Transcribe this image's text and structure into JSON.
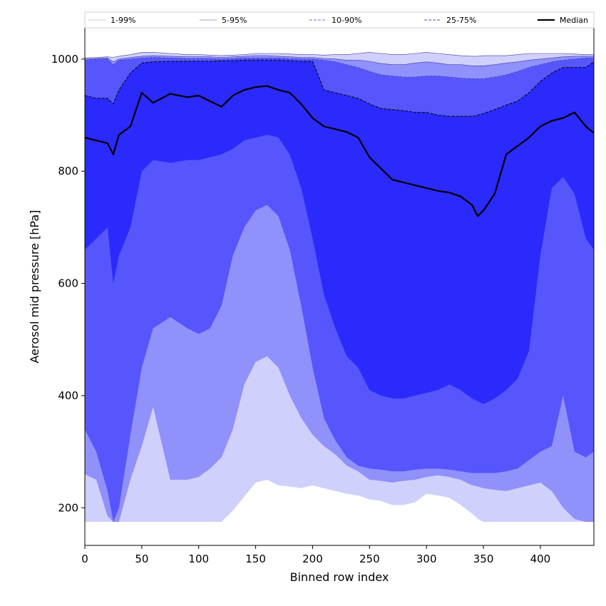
{
  "chart_data": {
    "type": "area",
    "xlabel": "Binned row index",
    "ylabel": "Aerosol mid pressure [hPa]",
    "xlim": [
      0,
      447
    ],
    "ylim": [
      133,
      1057
    ],
    "x_ticks": [
      "0",
      "50",
      "100",
      "150",
      "200",
      "250",
      "300",
      "350",
      "400"
    ],
    "y_ticks": [
      "200",
      "400",
      "600",
      "800",
      "1000"
    ],
    "grid": false,
    "legend_position": "top, spanning full width above plot",
    "x": [
      0,
      10,
      20,
      25,
      30,
      40,
      50,
      60,
      75,
      90,
      100,
      110,
      120,
      130,
      140,
      150,
      160,
      170,
      180,
      190,
      200,
      210,
      220,
      230,
      240,
      250,
      260,
      270,
      280,
      290,
      300,
      310,
      320,
      330,
      340,
      345,
      350,
      360,
      370,
      380,
      390,
      400,
      410,
      420,
      430,
      440,
      447
    ],
    "series": [
      {
        "name": "1-99%",
        "line_style": "solid",
        "lower": [
          175,
          175,
          175,
          175,
          175,
          175,
          175,
          175,
          175,
          175,
          175,
          175,
          175,
          195,
          220,
          245,
          250,
          240,
          238,
          235,
          240,
          235,
          230,
          225,
          222,
          215,
          212,
          205,
          205,
          210,
          225,
          222,
          218,
          205,
          190,
          180,
          175,
          175,
          175,
          175,
          175,
          175,
          175,
          175,
          175,
          175,
          175
        ],
        "upper": [
          1002,
          1003,
          1004,
          1003,
          1005,
          1008,
          1012,
          1012,
          1010,
          1008,
          1008,
          1007,
          1006,
          1007,
          1008,
          1010,
          1010,
          1010,
          1009,
          1008,
          1008,
          1007,
          1008,
          1008,
          1010,
          1012,
          1010,
          1008,
          1008,
          1010,
          1012,
          1010,
          1008,
          1006,
          1005,
          1005,
          1006,
          1006,
          1006,
          1008,
          1010,
          1010,
          1010,
          1010,
          1009,
          1008,
          1008
        ],
        "color": "#d0d0fc"
      },
      {
        "name": "5-95%",
        "line_style": "solid",
        "lower": [
          260,
          250,
          185,
          175,
          175,
          250,
          310,
          380,
          250,
          250,
          255,
          270,
          290,
          340,
          420,
          460,
          470,
          450,
          400,
          360,
          330,
          310,
          295,
          275,
          265,
          250,
          248,
          245,
          248,
          250,
          255,
          258,
          255,
          250,
          240,
          238,
          235,
          232,
          230,
          235,
          240,
          245,
          230,
          200,
          180,
          175,
          175
        ],
        "upper": [
          1000,
          1001,
          1002,
          995,
          1000,
          1003,
          1005,
          1006,
          1005,
          1004,
          1004,
          1004,
          1003,
          1004,
          1005,
          1006,
          1006,
          1005,
          1004,
          1003,
          1003,
          1001,
          1000,
          998,
          998,
          996,
          992,
          990,
          990,
          993,
          995,
          993,
          990,
          990,
          988,
          988,
          988,
          990,
          993,
          995,
          998,
          1000,
          1002,
          1004,
          1005,
          1005,
          1005
        ],
        "color": "#9191fc"
      },
      {
        "name": "10-90%",
        "line_style": "dashed",
        "lower": [
          340,
          300,
          230,
          175,
          200,
          330,
          450,
          520,
          540,
          520,
          510,
          520,
          560,
          650,
          700,
          730,
          740,
          720,
          660,
          560,
          450,
          360,
          320,
          290,
          275,
          270,
          268,
          265,
          265,
          268,
          270,
          270,
          268,
          265,
          262,
          262,
          262,
          262,
          265,
          270,
          285,
          300,
          310,
          400,
          300,
          290,
          300
        ],
        "upper": [
          998,
          1000,
          1000,
          990,
          998,
          1000,
          1002,
          1003,
          1002,
          1001,
          1001,
          1001,
          1000,
          1001,
          1002,
          1002,
          1002,
          1002,
          1001,
          1000,
          1000,
          998,
          995,
          990,
          985,
          978,
          972,
          970,
          968,
          968,
          970,
          970,
          968,
          966,
          965,
          965,
          965,
          968,
          972,
          978,
          985,
          990,
          995,
          998,
          1000,
          1002,
          1002
        ],
        "color": "#5656fc"
      },
      {
        "name": "25-75%",
        "line_style": "dashed",
        "lower": [
          660,
          680,
          700,
          600,
          650,
          700,
          800,
          820,
          815,
          820,
          820,
          825,
          830,
          840,
          855,
          860,
          865,
          860,
          830,
          770,
          680,
          580,
          520,
          470,
          450,
          410,
          400,
          395,
          395,
          400,
          405,
          410,
          420,
          410,
          395,
          390,
          385,
          395,
          410,
          430,
          480,
          650,
          770,
          790,
          760,
          680,
          660
        ],
        "upper": [
          935,
          930,
          930,
          920,
          945,
          975,
          993,
          995,
          996,
          996,
          996,
          996,
          997,
          997,
          998,
          998,
          998,
          998,
          997,
          996,
          996,
          945,
          940,
          935,
          930,
          920,
          912,
          910,
          908,
          905,
          905,
          900,
          898,
          898,
          898,
          900,
          903,
          910,
          918,
          925,
          940,
          960,
          975,
          985,
          985,
          985,
          995
        ],
        "color": "#2a2afc"
      }
    ],
    "median": {
      "name": "Median",
      "color": "#000000",
      "values": [
        860,
        855,
        850,
        830,
        865,
        880,
        940,
        922,
        938,
        932,
        935,
        925,
        915,
        935,
        945,
        950,
        952,
        945,
        940,
        920,
        895,
        880,
        875,
        870,
        860,
        825,
        805,
        785,
        780,
        775,
        770,
        765,
        762,
        755,
        740,
        720,
        730,
        760,
        830,
        845,
        860,
        880,
        890,
        895,
        905,
        880,
        868
      ]
    }
  }
}
